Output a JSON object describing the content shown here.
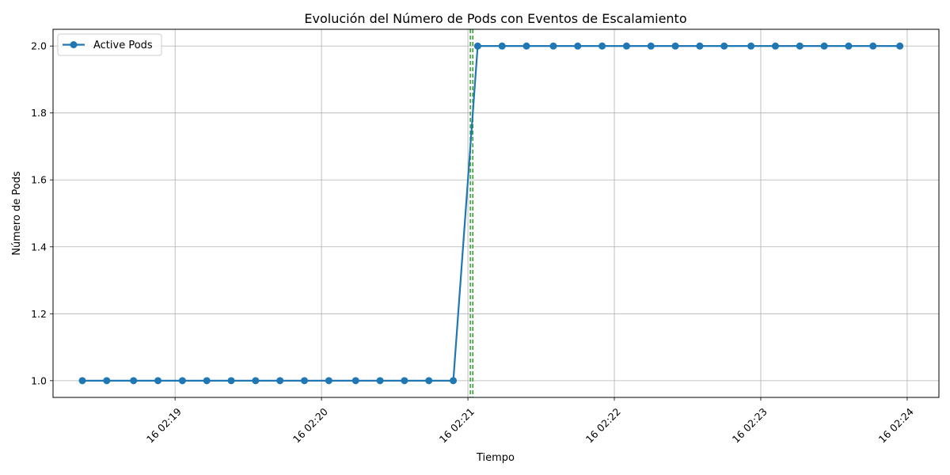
{
  "chart_data": {
    "type": "line",
    "title": "Evolución del Número de Pods con Eventos de Escalamiento",
    "xlabel": "Tiempo",
    "ylabel": "Número de Pods",
    "x_tick_labels": [
      "16 02:19",
      "16 02:20",
      "16 02:21",
      "16 02:22",
      "16 02:23",
      "16 02:24"
    ],
    "x_tick_times": [
      "02:19:00",
      "02:20:00",
      "02:21:00",
      "02:22:00",
      "02:23:00",
      "02:24:00"
    ],
    "y_ticks": [
      1.0,
      1.2,
      1.4,
      1.6,
      1.8,
      2.0
    ],
    "xlim": [
      "02:18:10",
      "02:24:13"
    ],
    "ylim": [
      0.95,
      2.05
    ],
    "grid": true,
    "legend_position": "top-left",
    "series": [
      {
        "name": "Active Pods",
        "color": "#1f77b4",
        "marker": "circle",
        "x": [
          "02:18:22",
          "02:18:32",
          "02:18:43",
          "02:18:53",
          "02:19:03",
          "02:19:13",
          "02:19:23",
          "02:19:33",
          "02:19:43",
          "02:19:53",
          "02:20:03",
          "02:20:14",
          "02:20:24",
          "02:20:34",
          "02:20:44",
          "02:20:54",
          "02:21:04",
          "02:21:14",
          "02:21:24",
          "02:21:35",
          "02:21:45",
          "02:21:55",
          "02:22:05",
          "02:22:15",
          "02:22:25",
          "02:22:35",
          "02:22:45",
          "02:22:56",
          "02:23:06",
          "02:23:16",
          "02:23:26",
          "02:23:36",
          "02:23:46",
          "02:23:57"
        ],
        "y": [
          1,
          1,
          1,
          1,
          1,
          1,
          1,
          1,
          1,
          1,
          1,
          1,
          1,
          1,
          1,
          1,
          2,
          2,
          2,
          2,
          2,
          2,
          2,
          2,
          2,
          2,
          2,
          2,
          2,
          2,
          2,
          2,
          2,
          2
        ]
      }
    ],
    "event_lines": [
      {
        "x": "02:21:01",
        "color": "#2ca02c",
        "style": "dashed"
      },
      {
        "x": "02:21:02",
        "color": "#2ca02c",
        "style": "dashed"
      }
    ]
  }
}
